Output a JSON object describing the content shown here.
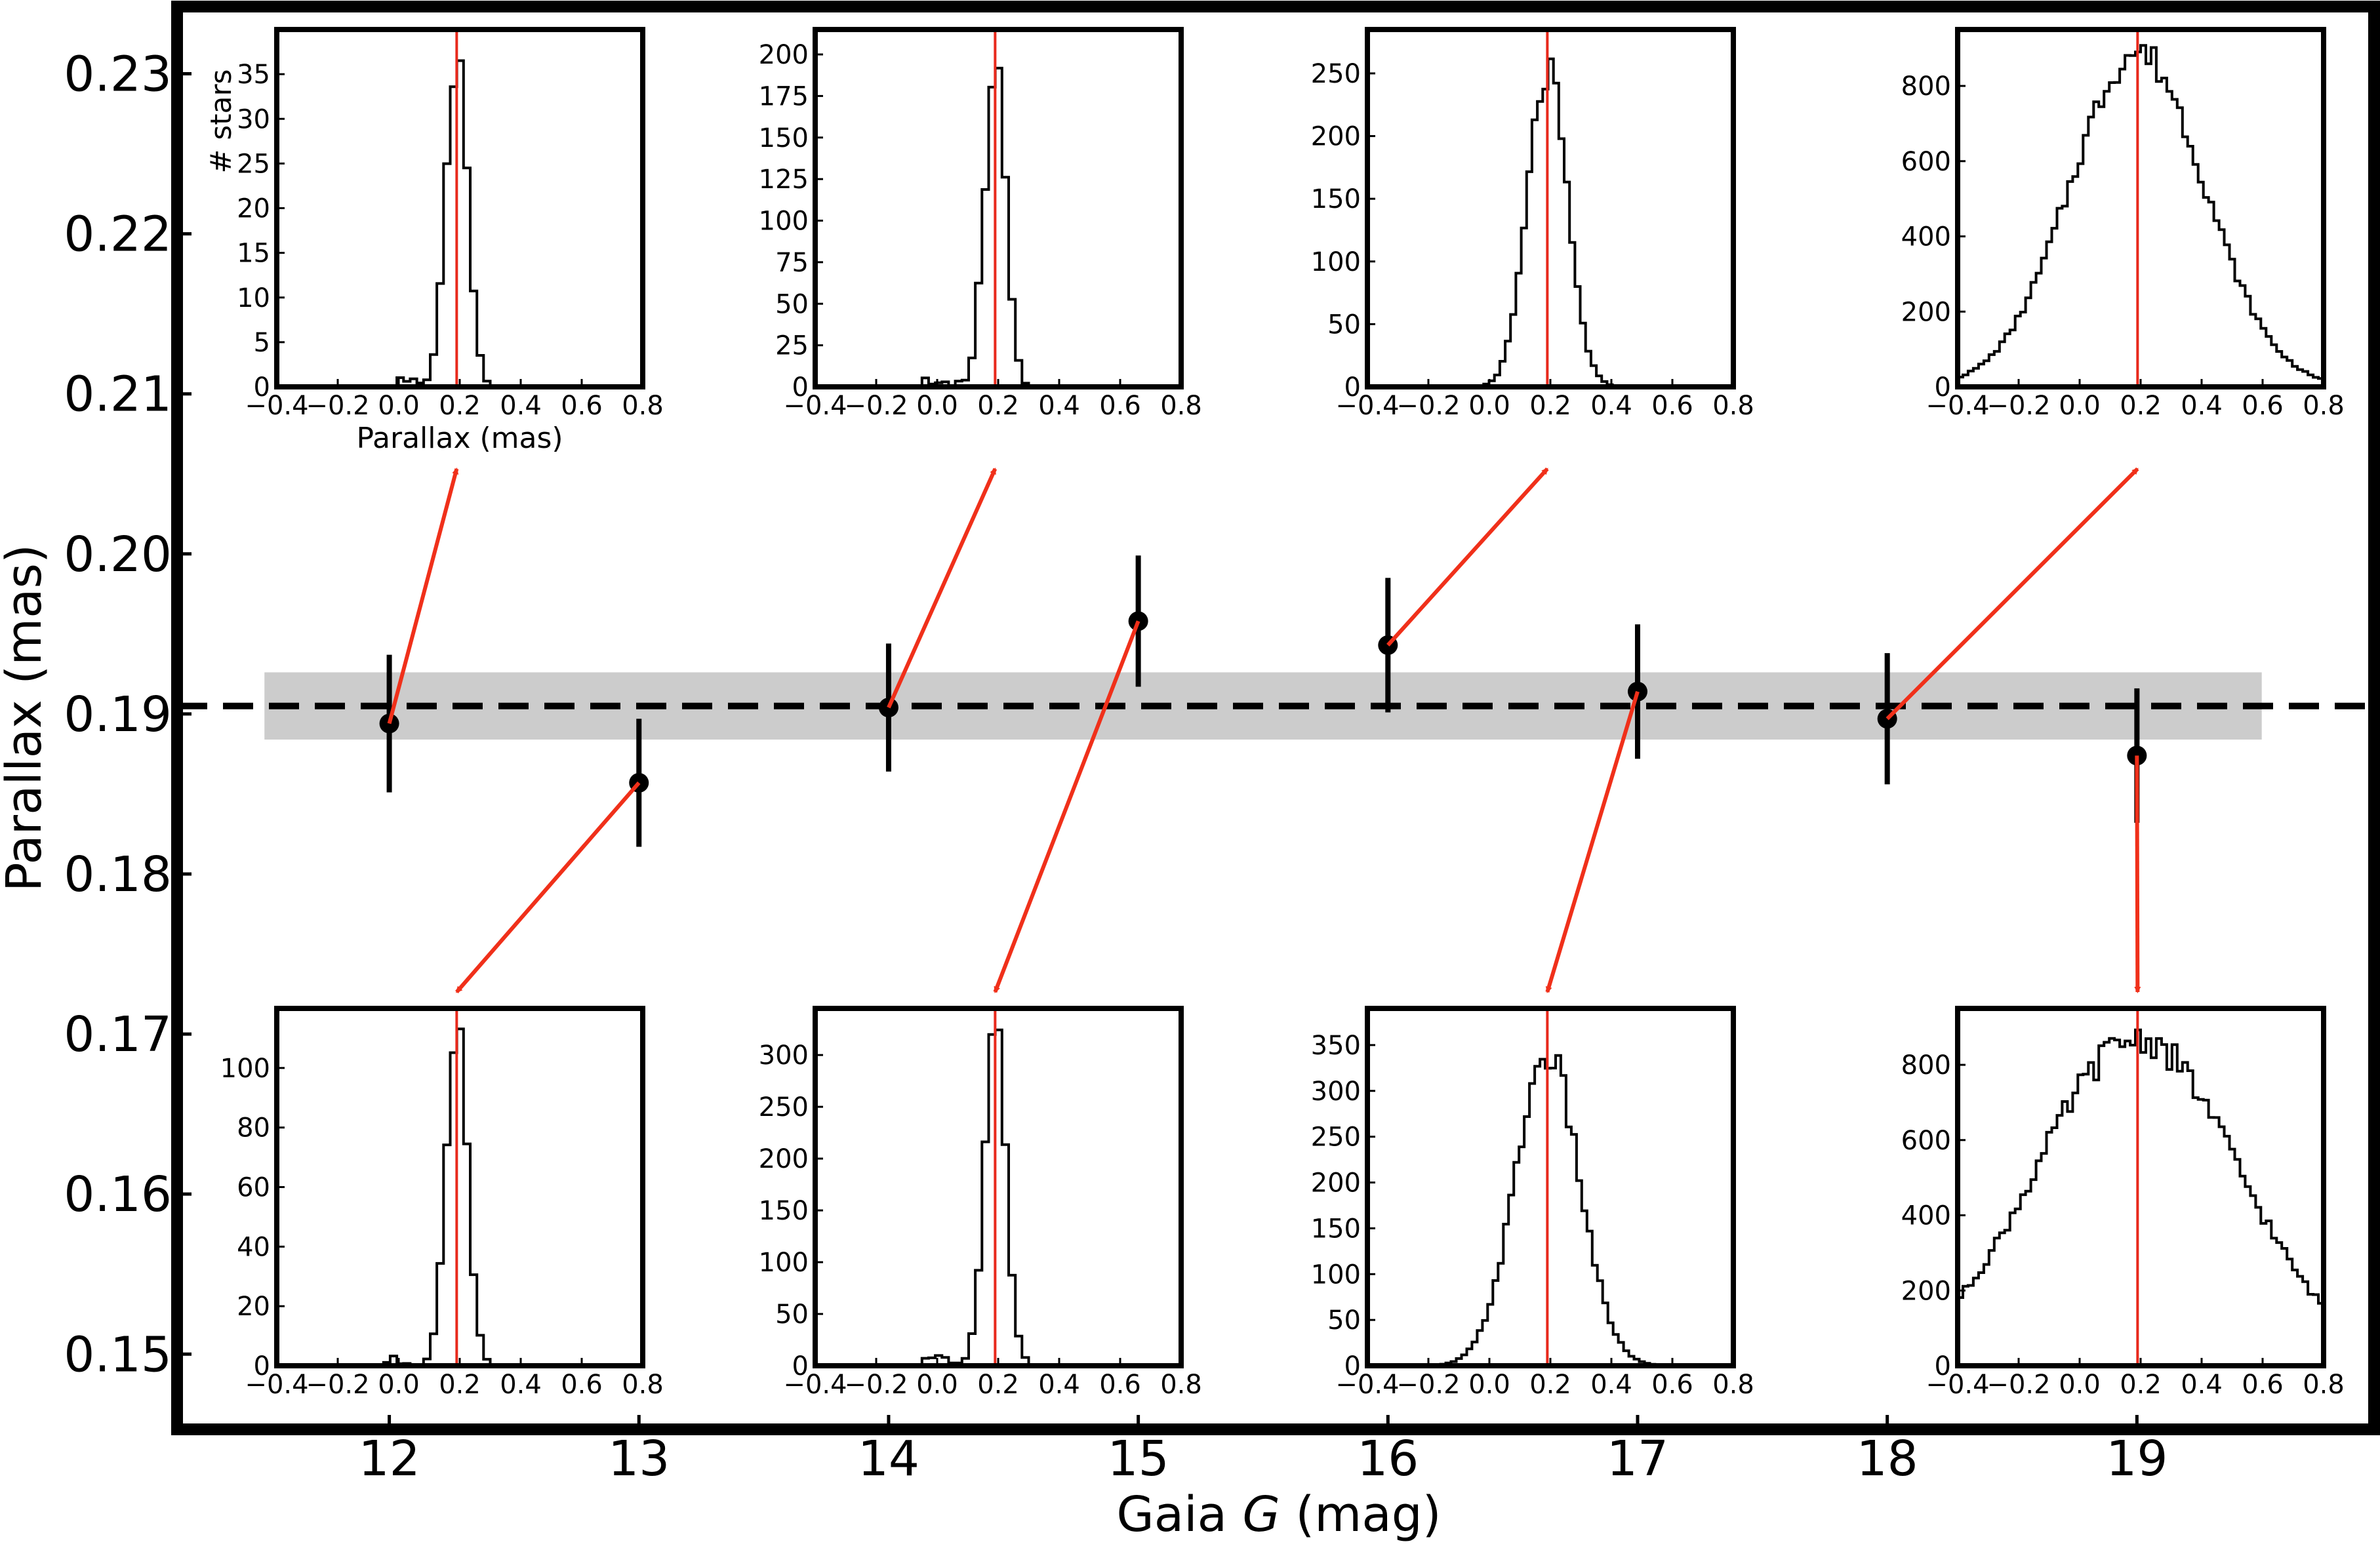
{
  "chart_data": {
    "type": "scatter",
    "xlabel_prefix": "Gaia ",
    "xlabel_var": "G",
    "xlabel_suffix": " (mag)",
    "ylabel": "Parallax (mas)",
    "xlim": [
      11.15,
      19.95
    ],
    "ylim": [
      0.1453,
      0.2342
    ],
    "x_ticks": [
      12,
      13,
      14,
      15,
      16,
      17,
      18,
      19
    ],
    "x_tick_labels": [
      "12",
      "13",
      "14",
      "15",
      "16",
      "17",
      "18",
      "19"
    ],
    "y_ticks": [
      0.15,
      0.16,
      0.17,
      0.18,
      0.19,
      0.2,
      0.21,
      0.22,
      0.23
    ],
    "y_tick_labels": [
      "0.15",
      "0.16",
      "0.17",
      "0.18",
      "0.19",
      "0.20",
      "0.21",
      "0.22",
      "0.23"
    ],
    "reference_line": {
      "y": 0.1905,
      "style": "dashed",
      "color": "#000000"
    },
    "reference_band": {
      "x_range": [
        11.5,
        19.5
      ],
      "y_range": [
        0.1884,
        0.1926
      ],
      "color": "#cccccc"
    },
    "points": [
      {
        "x": 12.0,
        "y": 0.1894,
        "err": 0.0043
      },
      {
        "x": 13.0,
        "y": 0.1857,
        "err": 0.004
      },
      {
        "x": 14.0,
        "y": 0.1904,
        "err": 0.004
      },
      {
        "x": 15.0,
        "y": 0.1958,
        "err": 0.0041
      },
      {
        "x": 16.0,
        "y": 0.1943,
        "err": 0.0042
      },
      {
        "x": 17.0,
        "y": 0.1914,
        "err": 0.0042
      },
      {
        "x": 18.0,
        "y": 0.1897,
        "err": 0.0041
      },
      {
        "x": 19.0,
        "y": 0.1874,
        "err": 0.0042
      }
    ],
    "inset_common": {
      "xlabel": "Parallax (mas)",
      "ylabel": "# stars",
      "xlim": [
        -0.4,
        0.8
      ],
      "x_ticks": [
        -0.4,
        -0.2,
        0.0,
        0.2,
        0.4,
        0.6,
        0.8
      ],
      "x_tick_labels": [
        "−0.4",
        "−0.2",
        "0.0",
        "0.2",
        "0.4",
        "0.6",
        "0.8"
      ],
      "marker_x": 0.19,
      "marker_color": "#e8291c"
    },
    "insets": [
      {
        "mag": 12,
        "row": "top",
        "ymax": 40,
        "y_ticks": [
          0,
          5,
          10,
          15,
          20,
          25,
          30,
          35
        ],
        "shape": "narrow",
        "peak": 38,
        "show_labels": true
      },
      {
        "mag": 13,
        "row": "bottom",
        "ymax": 120,
        "y_ticks": [
          0,
          20,
          40,
          60,
          80,
          100
        ],
        "shape": "narrow",
        "peak": 112
      },
      {
        "mag": 14,
        "row": "top",
        "ymax": 215,
        "y_ticks": [
          0,
          25,
          50,
          75,
          100,
          125,
          150,
          175,
          200
        ],
        "shape": "narrow",
        "peak": 195
      },
      {
        "mag": 15,
        "row": "bottom",
        "ymax": 345,
        "y_ticks": [
          0,
          50,
          100,
          150,
          200,
          250,
          300
        ],
        "shape": "narrow",
        "peak": 330
      },
      {
        "mag": 16,
        "row": "top",
        "ymax": 285,
        "y_ticks": [
          0,
          50,
          100,
          150,
          200,
          250
        ],
        "shape": "medium",
        "peak": 250
      },
      {
        "mag": 17,
        "row": "bottom",
        "ymax": 390,
        "y_ticks": [
          0,
          50,
          100,
          150,
          200,
          250,
          300,
          350
        ],
        "shape": "wide",
        "peak": 340
      },
      {
        "mag": 18,
        "row": "top",
        "ymax": 950,
        "y_ticks": [
          0,
          200,
          400,
          600,
          800
        ],
        "shape": "broad",
        "peak": 890
      },
      {
        "mag": 19,
        "row": "bottom",
        "ymax": 950,
        "y_ticks": [
          0,
          200,
          400,
          600,
          800
        ],
        "shape": "broadest",
        "peak": 870
      }
    ],
    "colors": {
      "points": "#000000",
      "arrows": "#f0301a",
      "band": "#cccccc"
    }
  }
}
